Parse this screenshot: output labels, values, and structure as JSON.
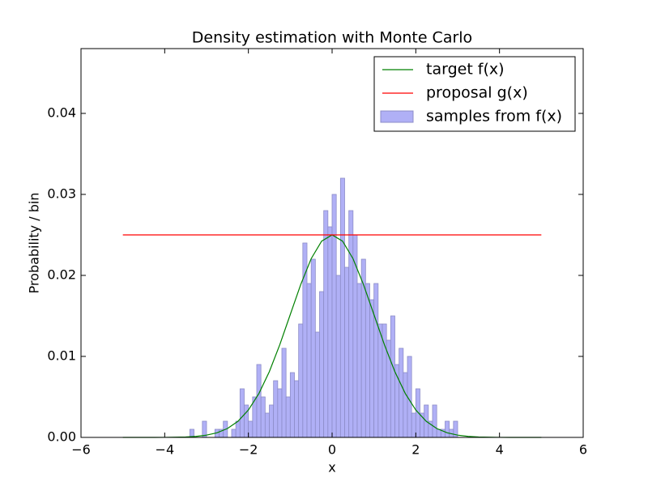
{
  "chart_data": {
    "type": "histogram",
    "title": "Density estimation with Monte Carlo",
    "xlabel": "x",
    "ylabel": "Probability / bin",
    "xlim": [
      -6,
      6
    ],
    "ylim": [
      0,
      0.048
    ],
    "xticks": [
      {
        "value": -6,
        "label": "−6"
      },
      {
        "value": -4,
        "label": "−4"
      },
      {
        "value": -2,
        "label": "−2"
      },
      0,
      2,
      4,
      6
    ],
    "yticks": [
      {
        "value": 0,
        "label": "0.00"
      },
      {
        "value": 0.01,
        "label": "0.01"
      },
      {
        "value": 0.02,
        "label": "0.02"
      },
      {
        "value": 0.03,
        "label": "0.03"
      },
      {
        "value": 0.04,
        "label": "0.04"
      }
    ],
    "legend": "upper right",
    "hist": {
      "name": "samples from f(x)",
      "color": "#b0b0f6",
      "bins": [
        -5,
        -4.9,
        -4.8,
        -4.7,
        -4.6,
        -4.5,
        -4.4,
        -4.3,
        -4.2,
        -4.1,
        -4,
        -3.9,
        -3.8,
        -3.7,
        -3.6,
        -3.5,
        -3.4,
        -3.3,
        -3.2,
        -3.1,
        -3,
        -2.9,
        -2.8,
        -2.7,
        -2.6,
        -2.5,
        -2.4,
        -2.3,
        -2.2,
        -2.1,
        -2,
        -1.9,
        -1.8,
        -1.7,
        -1.6,
        -1.5,
        -1.4,
        -1.3,
        -1.2,
        -1.1,
        -1,
        -0.9,
        -0.8,
        -0.7,
        -0.6,
        -0.5,
        -0.4,
        -0.3,
        -0.2,
        -0.1,
        0,
        0.1,
        0.2,
        0.3,
        0.4,
        0.5,
        0.6,
        0.7,
        0.8,
        0.9,
        1,
        1.1,
        1.2,
        1.3,
        1.4,
        1.5,
        1.6,
        1.7,
        1.8,
        1.9,
        2,
        2.1,
        2.2,
        2.3,
        2.4,
        2.5,
        2.6,
        2.7,
        2.8,
        2.9,
        3,
        3.1,
        3.2,
        3.3,
        3.4,
        3.5,
        3.6,
        3.7,
        3.8,
        3.9,
        4,
        4.1,
        4.2,
        4.3,
        4.4,
        4.5,
        4.6,
        4.7,
        4.8,
        4.9,
        5
      ],
      "values": [
        0,
        0,
        0,
        0,
        0,
        0,
        0,
        0,
        0,
        0,
        0,
        0,
        0,
        0,
        0,
        0,
        0.001,
        0,
        0,
        0.002,
        0,
        0,
        0.001,
        0.001,
        0.002,
        0,
        0.001,
        0.002,
        0.006,
        0.004,
        0.002,
        0.005,
        0.009,
        0.005,
        0.003,
        0.004,
        0.007,
        0.006,
        0.011,
        0.005,
        0.008,
        0.007,
        0.014,
        0.024,
        0.019,
        0.022,
        0.013,
        0.018,
        0.028,
        0.026,
        0.03,
        0.02,
        0.032,
        0.021,
        0.028,
        0.025,
        0.019,
        0.022,
        0.019,
        0.017,
        0.019,
        0.014,
        0.014,
        0.012,
        0.015,
        0.009,
        0.011,
        0.008,
        0.01,
        0.003,
        0.006,
        0.003,
        0.004,
        0.002,
        0.004,
        0.001,
        0.001,
        0.002,
        0.001,
        0.002,
        0,
        0,
        0,
        0,
        0,
        0,
        0,
        0,
        0,
        0,
        0,
        0,
        0,
        0,
        0,
        0,
        0,
        0,
        0,
        0
      ]
    },
    "series": [
      {
        "name": "target f(x)",
        "type": "line",
        "color": "#008000",
        "x": [
          -5,
          -4.75,
          -4.5,
          -4.25,
          -4,
          -3.75,
          -3.5,
          -3.25,
          -3,
          -2.75,
          -2.5,
          -2.25,
          -2,
          -1.75,
          -1.5,
          -1.25,
          -1,
          -0.75,
          -0.5,
          -0.25,
          0,
          0.25,
          0.5,
          0.75,
          1,
          1.25,
          1.5,
          1.75,
          2,
          2.25,
          2.5,
          2.75,
          3,
          3.25,
          3.5,
          3.75,
          4,
          4.25,
          4.5,
          4.75,
          5
        ],
        "values": [
          1e-07,
          3e-07,
          1e-06,
          3e-06,
          8.4e-06,
          2.21e-05,
          5.47e-05,
          0.000127,
          0.000278,
          0.00057,
          0.001098,
          0.001989,
          0.003383,
          0.005407,
          0.008116,
          0.011446,
          0.015163,
          0.018871,
          0.022063,
          0.024231,
          0.025,
          0.024231,
          0.022063,
          0.018871,
          0.015163,
          0.011446,
          0.008116,
          0.005407,
          0.003383,
          0.001989,
          0.001098,
          0.00057,
          0.000278,
          0.000127,
          5.47e-05,
          2.21e-05,
          8.4e-06,
          3e-06,
          1e-06,
          3e-07,
          1e-07
        ]
      },
      {
        "name": "proposal g(x)",
        "type": "line",
        "color": "#ff0000",
        "x": [
          -5,
          5
        ],
        "values": [
          0.025,
          0.025
        ]
      }
    ]
  }
}
